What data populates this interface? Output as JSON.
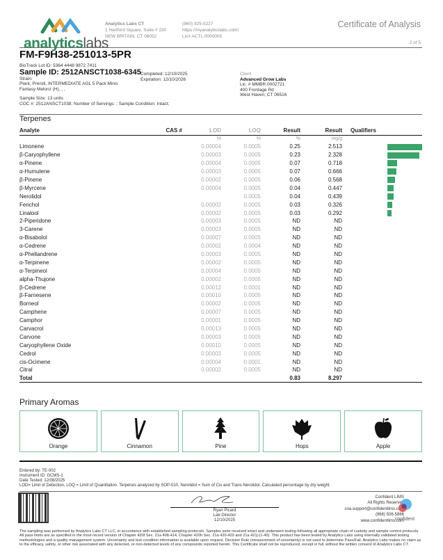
{
  "header": {
    "logo_text_bold": "analytics",
    "logo_text_light": "labs",
    "lab_name": "Analytics Labs CT",
    "lab_address1": "1 Hartford Square, Suite # 230",
    "lab_address2": "NEW BRITAIN, CT 06052",
    "phone": "(860) 925-5227",
    "website": "https://myanalyticslabs.com/",
    "license": "Lic# ACTL.0000005",
    "doc_title": "Certificate of Analysis",
    "page": "2 of 5"
  },
  "sample": {
    "batch": "FM-F9H38-251013-5PR",
    "biotrack": "BioTrack Lot ID: 5364 4448 9872 7411",
    "sample_id": "Sample ID: 2512ANSCT1038-6345",
    "completed": "Completed: 12/10/2025",
    "expiration": "Expiration: 12/10/2026",
    "strain": "Strain:",
    "product": "Plant, Preroll, INTERMEDIATE AGL 5 Pack Minis",
    "product2": "Fantasy Melonz (H), , ,",
    "size": "Sample Size: 13 units",
    "coc": "COC #: 2512ANSCT1038; Number of Servings: ; Sample Condition: Intact;"
  },
  "client": {
    "label": "Client",
    "name": "Advanced Grow Labs",
    "license": "Lic. # MMBR.0002721",
    "address1": "400 Frontage Rd",
    "address2": "West Haven, CT 06516"
  },
  "terpenes": {
    "title": "Terpenes",
    "columns": [
      "Analyte",
      "CAS #",
      "LOD",
      "LOQ",
      "Result",
      "Result",
      "Qualifiers"
    ],
    "units": [
      "",
      "",
      "%",
      "%",
      "%",
      "mg/g",
      ""
    ],
    "bar_color": "#3aa46b",
    "rows": [
      [
        "Limonene",
        "",
        "0.00004",
        "0.0005",
        "0.25",
        "2.513"
      ],
      [
        "β-Caryophyllene",
        "",
        "0.00003",
        "0.0005",
        "0.23",
        "2.328"
      ],
      [
        "α-Pinene",
        "",
        "0.00004",
        "0.0005",
        "0.07",
        "0.718"
      ],
      [
        "α-Humulene",
        "",
        "0.00003",
        "0.0005",
        "0.07",
        "0.666"
      ],
      [
        "β-Pinene",
        "",
        "0.00002",
        "0.0005",
        "0.06",
        "0.568"
      ],
      [
        "β-Myrcene",
        "",
        "0.00004",
        "0.0005",
        "0.04",
        "0.447"
      ],
      [
        "Nerolidol",
        "",
        "",
        "0.0005",
        "0.04",
        "0.439"
      ],
      [
        "Fenchol",
        "",
        "0.00002",
        "0.0005",
        "0.03",
        "0.326"
      ],
      [
        "Linalool",
        "",
        "0.00002",
        "0.0005",
        "0.03",
        "0.292"
      ],
      [
        "2-Piperidone",
        "",
        "0.00003",
        "0.0005",
        "ND",
        "ND"
      ],
      [
        "3-Carene",
        "",
        "0.00003",
        "0.0005",
        "ND",
        "ND"
      ],
      [
        "α-Bisabolol",
        "",
        "0.00007",
        "0.0005",
        "ND",
        "ND"
      ],
      [
        "α-Cedrene",
        "",
        "0.00002",
        "0.0004",
        "ND",
        "ND"
      ],
      [
        "α-Phellandrene",
        "",
        "0.00003",
        "0.0005",
        "ND",
        "ND"
      ],
      [
        "α-Terpinene",
        "",
        "0.00002",
        "0.0005",
        "ND",
        "ND"
      ],
      [
        "α-Terpineol",
        "",
        "0.00004",
        "0.0005",
        "ND",
        "ND"
      ],
      [
        "alpha-Thujone",
        "",
        "0.00002",
        "0.0005",
        "ND",
        "ND"
      ],
      [
        "β-Cedrene",
        "",
        "0.00012",
        "0.0001",
        "ND",
        "ND"
      ],
      [
        "β-Farnesene",
        "",
        "0.00010",
        "0.0005",
        "ND",
        "ND"
      ],
      [
        "Borneol",
        "",
        "0.00002",
        "0.0005",
        "ND",
        "ND"
      ],
      [
        "Camphene",
        "",
        "0.00007",
        "0.0005",
        "ND",
        "ND"
      ],
      [
        "Camphor",
        "",
        "0.00001",
        "0.0005",
        "ND",
        "ND"
      ],
      [
        "Carvacrol",
        "",
        "0.00013",
        "0.0005",
        "ND",
        "ND"
      ],
      [
        "Carvone",
        "",
        "0.00003",
        "0.0005",
        "ND",
        "ND"
      ],
      [
        "Caryophyllene Oxide",
        "",
        "0.00010",
        "0.0005",
        "ND",
        "ND"
      ],
      [
        "Cedrol",
        "",
        "0.00003",
        "0.0005",
        "ND",
        "ND"
      ],
      [
        "cis-Ocimene",
        "",
        "0.00004",
        "0.0001",
        "ND",
        "ND"
      ],
      [
        "Citral",
        "",
        "0.00002",
        "0.0005",
        "ND",
        "ND"
      ]
    ],
    "total": {
      "label": "Total",
      "percent": "0.83",
      "mgg": "8.297"
    }
  },
  "aromas": {
    "title": "Primary Aromas",
    "items": [
      {
        "label": "Orange",
        "icon": "orange-slice-icon"
      },
      {
        "label": "Cinnamon",
        "icon": "cinnamon-icon"
      },
      {
        "label": "Pine",
        "icon": "pine-tree-icon"
      },
      {
        "label": "Hops",
        "icon": "hops-icon"
      },
      {
        "label": "Apple",
        "icon": "apple-icon"
      }
    ]
  },
  "footer": {
    "entered_by": "Entered by: TE-002",
    "instrument": "Instrument ID: GCMS-1",
    "date_tested": "Date Tested: 12/08/2025",
    "note": "LOD= Limit of Detection, LOQ = Limit of Quantitation. Terpenes analyzed by SOP-010. Nerolidol = Sum of Cis and Trans-Nerolidol. Calculated percentage by dry weight",
    "signer": "Ryan Picard",
    "signer_title": "Lab Director",
    "sign_date": "12/10/2025",
    "lims_name": "Confident LIMS",
    "rights": "All Rights Reserved",
    "email": "coa.support@confidentlims.com",
    "lims_phone": "(866) 506-5866",
    "lims_web": "www.confidentlims.com",
    "lims_logo": "confident",
    "disclaimer": "The sampling was performed by Analytics Labs CT LLC, in accordance with established sampling protocols. Samples were received intact and underwent testing following all appropriate chain of custody and sample control protocols. All pass limits are as specified in the most recent version of Chapter 420f Sec. 21a 408-414, Chapter 420h Sec. 21a 420-429 and 21a 421j-(1-40). This product has been tested by Analytics Labs using internally validated testing methodologies and a quality management system. Uncertainty and test condition information is available upon request. Decision Rule (measurement of uncertainty) is not used to determine Pass/Fail. Analytics Labs makes no claim as to the efficacy, safety, or other risk associated with any detected, or non-detected levels of any compounds reported herein. This Certificate shall not be reproduced, except in full, without the written consent of Analytics Labs CT."
  }
}
